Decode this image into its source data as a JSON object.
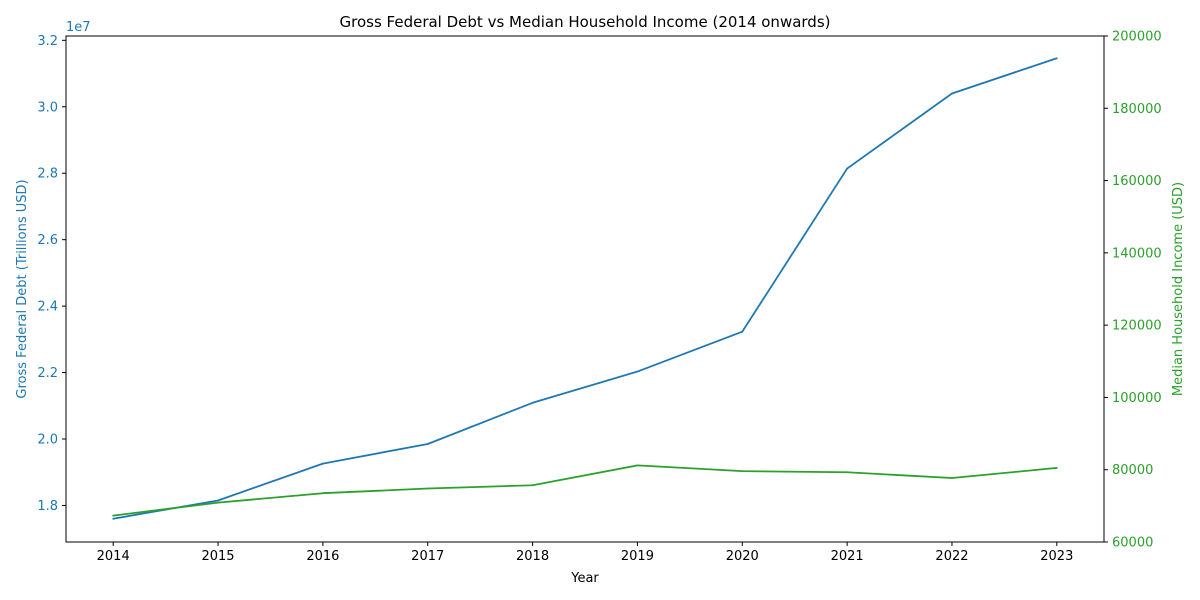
{
  "chart_data": {
    "type": "line",
    "title": "Gross Federal Debt vs Median Household Income (2014 onwards)",
    "xlabel": "Year",
    "x": [
      2014,
      2015,
      2016,
      2017,
      2018,
      2019,
      2020,
      2021,
      2022,
      2023
    ],
    "x_ticks": [
      "2014",
      "2015",
      "2016",
      "2017",
      "2018",
      "2019",
      "2020",
      "2021",
      "2022",
      "2023"
    ],
    "y_left": {
      "label": "Gross Federal Debt (Trillions USD)",
      "offset_text": "1e7",
      "color": "#1f77b4",
      "ylim": [
        16900000,
        32130000
      ],
      "ticks": [
        18000000,
        20000000,
        22000000,
        24000000,
        26000000,
        28000000,
        30000000,
        32000000
      ],
      "tick_labels": [
        "1.8",
        "2.0",
        "2.2",
        "2.4",
        "2.6",
        "2.8",
        "3.0",
        "3.2"
      ]
    },
    "y_right": {
      "label": "Median Household Income (USD)",
      "color": "#2ca02c",
      "ylim": [
        60000,
        200000
      ],
      "ticks": [
        60000,
        80000,
        100000,
        120000,
        140000,
        160000,
        180000,
        200000
      ],
      "tick_labels": [
        "60000",
        "80000",
        "100000",
        "120000",
        "140000",
        "160000",
        "180000",
        "200000"
      ]
    },
    "series": [
      {
        "axis": "left",
        "color": "#1f77b4",
        "values": [
          17600000,
          18150000,
          19260000,
          19850000,
          21090000,
          22030000,
          23230000,
          28140000,
          30400000,
          31460000
        ]
      },
      {
        "axis": "right",
        "color": "#2ca02c",
        "values": [
          67300,
          70900,
          73500,
          74800,
          75700,
          81200,
          79600,
          79300,
          77700,
          80500
        ]
      }
    ],
    "grid": false,
    "legend": "none"
  }
}
